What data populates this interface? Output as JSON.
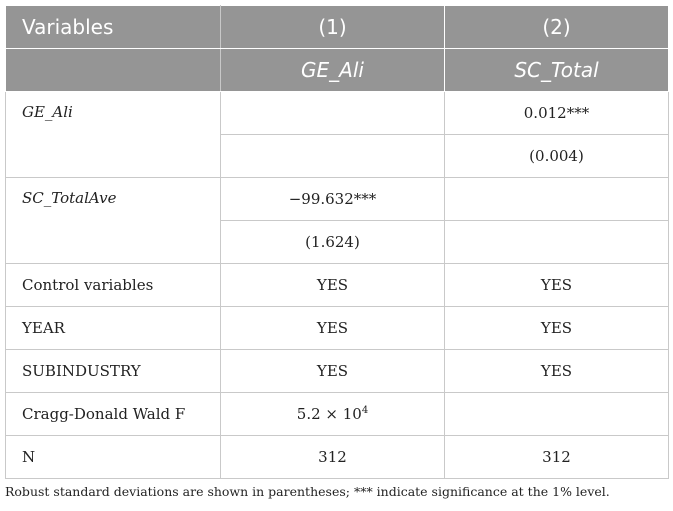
{
  "table": {
    "header": {
      "variables": "Variables",
      "col1_num": "(1)",
      "col2_num": "(2)",
      "col1_dep": "GE_Ali",
      "col2_dep": "SC_Total"
    },
    "rows": {
      "ge_ali": {
        "label": "GE_Ali",
        "c1_coef": "",
        "c2_coef": "0.012***",
        "c1_se": "",
        "c2_se": "(0.004)"
      },
      "sc_totalave": {
        "label": "SC_TotalAve",
        "c1_coef": "−99.632***",
        "c2_coef": "",
        "c1_se": "(1.624)",
        "c2_se": ""
      },
      "control": {
        "label": "Control variables",
        "c1": "YES",
        "c2": "YES"
      },
      "year": {
        "label": "YEAR",
        "c1": "YES",
        "c2": "YES"
      },
      "subindustry": {
        "label": "SUBINDUSTRY",
        "c1": "YES",
        "c2": "YES"
      },
      "cragg": {
        "label": "Cragg-Donald Wald F",
        "c1_base": "5.2 × 10",
        "c1_exp": "4",
        "c2": ""
      },
      "n": {
        "label": "N",
        "c1": "312",
        "c2": "312"
      }
    },
    "note": "Robust standard deviations are shown in parentheses; *** indicate significance at the 1% level."
  }
}
